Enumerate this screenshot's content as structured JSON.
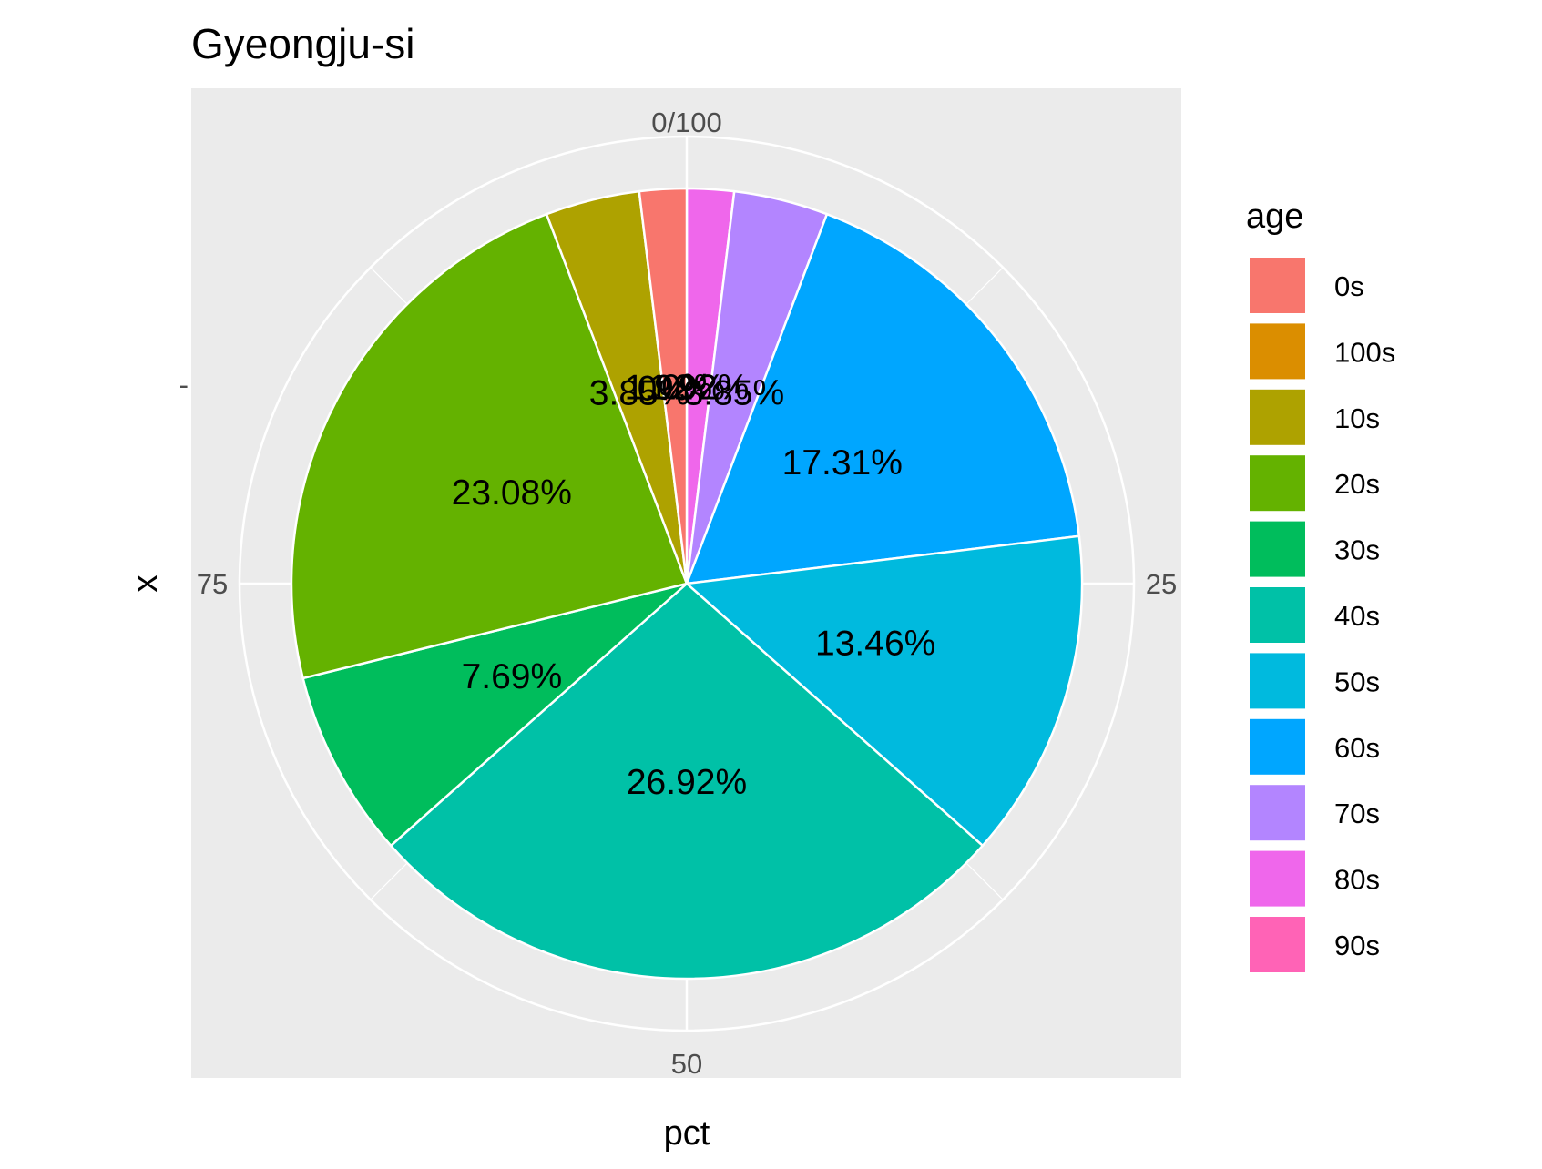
{
  "chart_data": {
    "type": "pie",
    "title": "Gyeongju-si",
    "xlabel": "pct",
    "ylabel": "x",
    "y_tick_label": "-",
    "theta_ticks": [
      "0/100",
      "25",
      "50",
      "75"
    ],
    "theta_tick_values": [
      0,
      25,
      50,
      75
    ],
    "grid": true,
    "legend": {
      "title": "age",
      "position": "right"
    },
    "slices": [
      {
        "name": "0s",
        "value": 1.92,
        "color": "#F8766D",
        "label": "1.92%"
      },
      {
        "name": "100s",
        "value": 0,
        "color": "#DB8E00",
        "label": "0%"
      },
      {
        "name": "10s",
        "value": 3.85,
        "color": "#AEA200",
        "label": "3.85%"
      },
      {
        "name": "20s",
        "value": 23.08,
        "color": "#64B200",
        "label": "23.08%"
      },
      {
        "name": "30s",
        "value": 7.69,
        "color": "#00BD5C",
        "label": "7.69%"
      },
      {
        "name": "40s",
        "value": 26.92,
        "color": "#00C1A7",
        "label": "26.92%"
      },
      {
        "name": "50s",
        "value": 13.46,
        "color": "#00BADE",
        "label": "13.46%"
      },
      {
        "name": "60s",
        "value": 17.31,
        "color": "#00A6FF",
        "label": "17.31%"
      },
      {
        "name": "70s",
        "value": 3.85,
        "color": "#B385FF",
        "label": "3.85%"
      },
      {
        "name": "80s",
        "value": 1.92,
        "color": "#EF67EB",
        "label": "1.92%"
      },
      {
        "name": "90s",
        "value": 0,
        "color": "#FF63B6",
        "label": "0%"
      }
    ],
    "stack_order": [
      "90s",
      "80s",
      "70s",
      "60s",
      "50s",
      "40s",
      "30s",
      "20s",
      "10s",
      "100s",
      "0s"
    ]
  }
}
